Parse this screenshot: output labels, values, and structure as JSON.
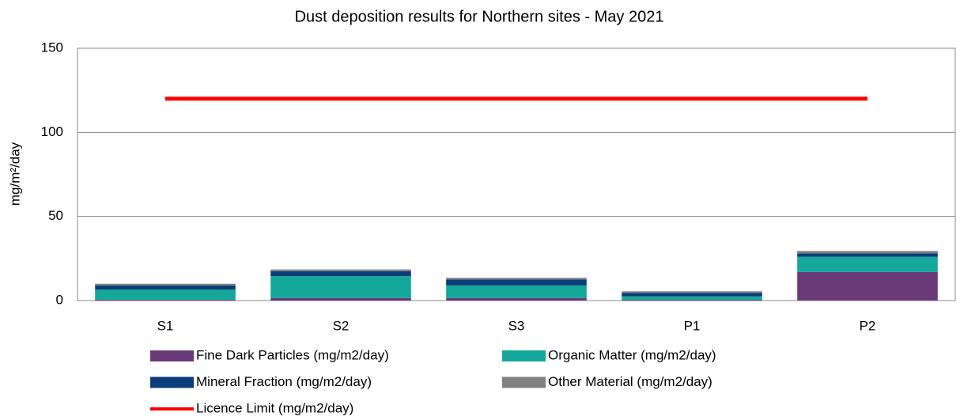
{
  "chart_data": {
    "type": "bar",
    "stacked": true,
    "title": "Dust deposition results for Northern sites -  May 2021",
    "y_label": "mg/m²/day",
    "categories": [
      "S1",
      "S2",
      "S3",
      "P1",
      "P2"
    ],
    "series": [
      {
        "name": "Fine Dark Particles (mg/m2/day)",
        "color": "#6b3a78",
        "values": [
          0.5,
          1.5,
          1.5,
          0.5,
          17
        ]
      },
      {
        "name": "Organic Matter (mg/m2/day)",
        "color": "#13a89a",
        "values": [
          6,
          13,
          7.5,
          2,
          9
        ]
      },
      {
        "name": "Mineral Fraction (mg/m2/day)",
        "color": "#0a3d7a",
        "values": [
          2.5,
          3,
          3.5,
          2,
          2
        ]
      },
      {
        "name": "Other Material (mg/m2/day)",
        "color": "#808080",
        "values": [
          1,
          1,
          1,
          1,
          1.5
        ]
      },
      {
        "name": "Licence Limit  (mg/m2/day)",
        "color": "#ff0000",
        "type": "line",
        "values": [
          120,
          120,
          120,
          120,
          120
        ]
      }
    ],
    "ylim": [
      0,
      150
    ],
    "yticks": [
      0,
      50,
      100,
      150
    ],
    "grid": true
  }
}
